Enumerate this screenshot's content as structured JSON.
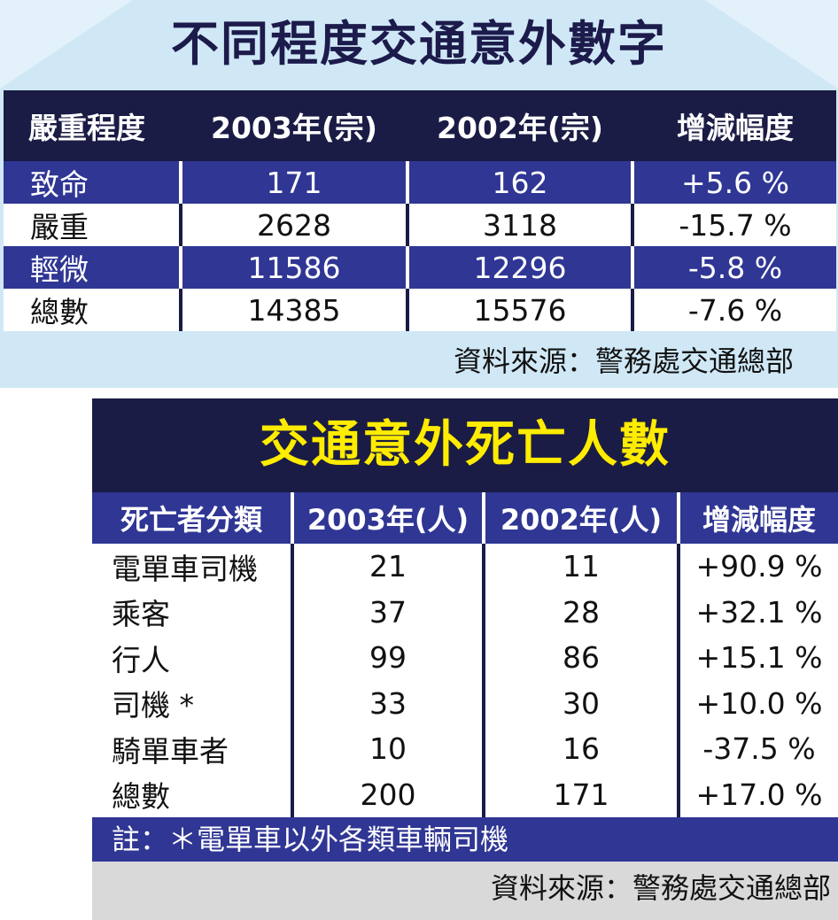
{
  "panel1": {
    "title": "不同程度交通意外數字",
    "headers": [
      "嚴重程度",
      "2003年(宗)",
      "2002年(宗)",
      "增減幅度"
    ],
    "rows": [
      {
        "label": "致命",
        "y2003": "171",
        "y2002": "162",
        "change": "+5.6 %"
      },
      {
        "label": "嚴重",
        "y2003": "2628",
        "y2002": "3118",
        "change": "-15.7 %"
      },
      {
        "label": "輕微",
        "y2003": "11586",
        "y2002": "12296",
        "change": "-5.8 %"
      },
      {
        "label": "總數",
        "y2003": "14385",
        "y2002": "15576",
        "change": "-7.6 %"
      }
    ],
    "source": "資料來源：警務處交通總部",
    "colors": {
      "dark": "#1a1c45",
      "blue": "#2f3694",
      "light_bg": "#d0e8f6"
    }
  },
  "panel2": {
    "title": "交通意外死亡人數",
    "headers": [
      "死亡者分類",
      "2003年(人)",
      "2002年(人)",
      "增減幅度"
    ],
    "rows": [
      {
        "label": "電單車司機",
        "y2003": "21",
        "y2002": "11",
        "change": "+90.9 %"
      },
      {
        "label": "乘客",
        "y2003": "37",
        "y2002": "28",
        "change": "+32.1 %"
      },
      {
        "label": "行人",
        "y2003": "99",
        "y2002": "86",
        "change": "+15.1 %"
      },
      {
        "label": "司機 *",
        "y2003": "33",
        "y2002": "30",
        "change": "+10.0 %"
      },
      {
        "label": "騎單車者",
        "y2003": "10",
        "y2002": "16",
        "change": "-37.5 %"
      },
      {
        "label": "總數",
        "y2003": "200",
        "y2002": "171",
        "change": "+17.0 %"
      }
    ],
    "note": "註：＊電單車以外各類車輛司機",
    "source": "資料來源：警務處交通總部",
    "colors": {
      "title_text": "#ffec00",
      "dark": "#1a1c45",
      "blue": "#2f3694",
      "footer_bg": "#d9d9d9"
    }
  }
}
